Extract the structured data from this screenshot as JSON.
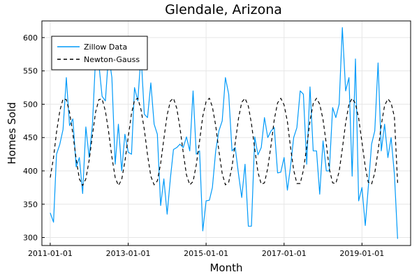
{
  "chart_data": {
    "type": "line",
    "title": "Glendale, Arizona",
    "xlabel": "Month",
    "ylabel": "Homes Sold",
    "xlim": [
      "2010-10-15",
      "2020-04-01"
    ],
    "ylim": [
      288,
      625
    ],
    "x_ticks": [
      "2011-01-01",
      "2013-01-01",
      "2015-01-01",
      "2017-01-01",
      "2019-01-01"
    ],
    "y_ticks": [
      300,
      350,
      400,
      450,
      500,
      550,
      600
    ],
    "grid": true,
    "legend_position": "top-left",
    "series": [
      {
        "name": "Zillow Data",
        "color": "#009AF9",
        "style": "solid",
        "x": [
          "2011-01-01",
          "2011-02-01",
          "2011-03-01",
          "2011-04-01",
          "2011-05-01",
          "2011-06-01",
          "2011-07-01",
          "2011-08-01",
          "2011-09-01",
          "2011-10-01",
          "2011-11-01",
          "2011-12-01",
          "2012-01-01",
          "2012-02-01",
          "2012-03-01",
          "2012-04-01",
          "2012-05-01",
          "2012-06-01",
          "2012-07-01",
          "2012-08-01",
          "2012-09-01",
          "2012-10-01",
          "2012-11-01",
          "2012-12-01",
          "2013-01-01",
          "2013-02-01",
          "2013-03-01",
          "2013-04-01",
          "2013-05-01",
          "2013-06-01",
          "2013-07-01",
          "2013-08-01",
          "2013-09-01",
          "2013-10-01",
          "2013-11-01",
          "2013-12-01",
          "2014-01-01",
          "2014-02-01",
          "2014-03-01",
          "2014-04-01",
          "2014-05-01",
          "2014-06-01",
          "2014-07-01",
          "2014-08-01",
          "2014-09-01",
          "2014-10-01",
          "2014-11-01",
          "2014-12-01",
          "2015-01-01",
          "2015-02-01",
          "2015-03-01",
          "2015-04-01",
          "2015-05-01",
          "2015-06-01",
          "2015-07-01",
          "2015-08-01",
          "2015-09-01",
          "2015-10-01",
          "2015-11-01",
          "2015-12-01",
          "2016-01-01",
          "2016-02-01",
          "2016-03-01",
          "2016-04-01",
          "2016-05-01",
          "2016-06-01",
          "2016-07-01",
          "2016-08-01",
          "2016-09-01",
          "2016-10-01",
          "2016-11-01",
          "2016-12-01",
          "2017-01-01",
          "2017-02-01",
          "2017-03-01",
          "2017-04-01",
          "2017-05-01",
          "2017-06-01",
          "2017-07-01",
          "2017-08-01",
          "2017-09-01",
          "2017-10-01",
          "2017-11-01",
          "2017-12-01",
          "2018-01-01",
          "2018-02-01",
          "2018-03-01",
          "2018-04-01",
          "2018-05-01",
          "2018-06-01",
          "2018-07-01",
          "2018-08-01",
          "2018-09-01",
          "2018-10-01",
          "2018-11-01",
          "2018-12-01",
          "2019-01-01",
          "2019-02-01",
          "2019-03-01",
          "2019-04-01",
          "2019-05-01",
          "2019-06-01",
          "2019-07-01",
          "2019-08-01",
          "2019-09-01",
          "2019-10-01",
          "2019-11-01",
          "2019-12-01"
        ],
        "y": [
          337,
          323,
          425,
          440,
          462,
          540,
          468,
          478,
          406,
          420,
          366,
          466,
          420,
          470,
          570,
          560,
          512,
          505,
          575,
          540,
          410,
          470,
          400,
          455,
          428,
          425,
          525,
          505,
          575,
          485,
          480,
          532,
          470,
          455,
          348,
          388,
          335,
          390,
          432,
          435,
          440,
          435,
          451,
          430,
          520,
          425,
          430,
          310,
          355,
          356,
          375,
          430,
          460,
          475,
          540,
          515,
          430,
          435,
          395,
          360,
          410,
          317,
          317,
          451,
          424,
          435,
          480,
          450,
          460,
          465,
          397,
          398,
          420,
          371,
          405,
          450,
          465,
          520,
          515,
          410,
          526,
          430,
          430,
          365,
          445,
          400,
          400,
          495,
          480,
          500,
          615,
          520,
          540,
          392,
          568,
          355,
          375,
          318,
          375,
          440,
          460,
          562,
          430,
          470,
          420,
          450,
          395,
          298
        ]
      },
      {
        "name": "Newton-Gauss",
        "color": "#000000",
        "style": "dashed",
        "x": [
          "2011-01-01",
          "2011-02-01",
          "2011-03-01",
          "2011-04-01",
          "2011-05-01",
          "2011-06-01",
          "2011-07-01",
          "2011-08-01",
          "2011-09-01",
          "2011-10-01",
          "2011-11-01",
          "2011-12-01",
          "2012-01-01",
          "2012-02-01",
          "2012-03-01",
          "2012-04-01",
          "2012-05-01",
          "2012-06-01",
          "2012-07-01",
          "2012-08-01",
          "2012-09-01",
          "2012-10-01",
          "2012-11-01",
          "2012-12-01",
          "2013-01-01",
          "2013-02-01",
          "2013-03-01",
          "2013-04-01",
          "2013-05-01",
          "2013-06-01",
          "2013-07-01",
          "2013-08-01",
          "2013-09-01",
          "2013-10-01",
          "2013-11-01",
          "2013-12-01",
          "2014-01-01",
          "2014-02-01",
          "2014-03-01",
          "2014-04-01",
          "2014-05-01",
          "2014-06-01",
          "2014-07-01",
          "2014-08-01",
          "2014-09-01",
          "2014-10-01",
          "2014-11-01",
          "2014-12-01",
          "2015-01-01",
          "2015-02-01",
          "2015-03-01",
          "2015-04-01",
          "2015-05-01",
          "2015-06-01",
          "2015-07-01",
          "2015-08-01",
          "2015-09-01",
          "2015-10-01",
          "2015-11-01",
          "2015-12-01",
          "2016-01-01",
          "2016-02-01",
          "2016-03-01",
          "2016-04-01",
          "2016-05-01",
          "2016-06-01",
          "2016-07-01",
          "2016-08-01",
          "2016-09-01",
          "2016-10-01",
          "2016-11-01",
          "2016-12-01",
          "2017-01-01",
          "2017-02-01",
          "2017-03-01",
          "2017-04-01",
          "2017-05-01",
          "2017-06-01",
          "2017-07-01",
          "2017-08-01",
          "2017-09-01",
          "2017-10-01",
          "2017-11-01",
          "2017-12-01",
          "2018-01-01",
          "2018-02-01",
          "2018-03-01",
          "2018-04-01",
          "2018-05-01",
          "2018-06-01",
          "2018-07-01",
          "2018-08-01",
          "2018-09-01",
          "2018-10-01",
          "2018-11-01",
          "2018-12-01",
          "2019-01-01",
          "2019-02-01",
          "2019-03-01",
          "2019-04-01",
          "2019-05-01",
          "2019-06-01",
          "2019-07-01",
          "2019-08-01",
          "2019-09-01",
          "2019-10-01",
          "2019-11-01",
          "2019-12-01"
        ],
        "y": [
          390,
          420,
          458,
          490,
          508,
          507,
          488,
          456,
          418,
          388,
          378,
          388,
          416,
          454,
          488,
          507,
          508,
          490,
          459,
          421,
          390,
          378,
          387,
          414,
          451,
          486,
          506,
          509,
          492,
          462,
          424,
          392,
          379,
          385,
          411,
          448,
          484,
          505,
          509,
          494,
          465,
          427,
          394,
          379,
          384,
          409,
          445,
          482,
          504,
          509,
          496,
          468,
          430,
          396,
          379,
          383,
          406,
          442,
          479,
          503,
          509,
          497,
          471,
          433,
          398,
          380,
          382,
          404,
          439,
          477,
          502,
          509,
          499,
          474,
          437,
          401,
          381,
          381,
          401,
          436,
          475,
          501,
          509,
          500,
          477,
          440,
          403,
          382,
          381,
          399,
          433,
          472,
          500,
          509,
          501,
          479,
          443,
          406,
          383,
          380,
          397,
          430,
          469,
          498,
          508,
          502,
          481,
          382
        ]
      }
    ]
  }
}
